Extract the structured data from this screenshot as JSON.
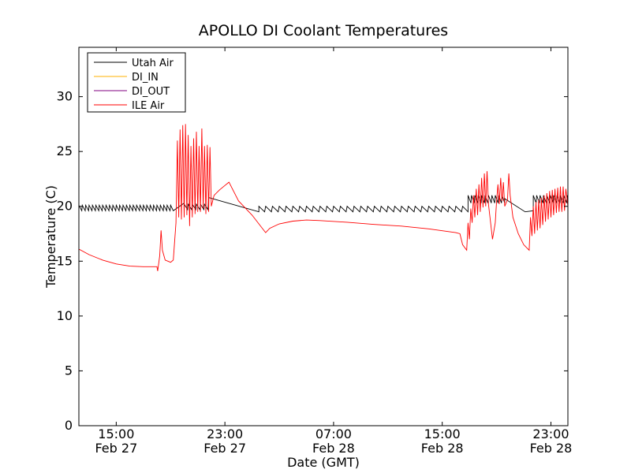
{
  "chart_data": {
    "type": "line",
    "title": "APOLLO DI Coolant Temperatures",
    "xlabel": "Date (GMT)",
    "ylabel": "Temperature (C)",
    "xlim": [
      12.25,
      48.25
    ],
    "ylim": [
      0,
      34.5
    ],
    "legend_position": "top-left",
    "x_ticks": [
      {
        "value": 15,
        "line1": "15:00",
        "line2": "Feb 27"
      },
      {
        "value": 23,
        "line1": "23:00",
        "line2": "Feb 27"
      },
      {
        "value": 31,
        "line1": "07:00",
        "line2": "Feb 28"
      },
      {
        "value": 39,
        "line1": "15:00",
        "line2": "Feb 28"
      },
      {
        "value": 47,
        "line1": "23:00",
        "line2": "Feb 28"
      }
    ],
    "y_ticks": [
      0,
      5,
      10,
      15,
      20,
      25,
      30
    ],
    "series": [
      {
        "name": "Utah Air",
        "color": "#000000",
        "visible": true
      },
      {
        "name": "DI_IN",
        "color": "#FFB000",
        "visible": false
      },
      {
        "name": "DI_OUT",
        "color": "#800080",
        "visible": false
      },
      {
        "name": "ILE Air",
        "color": "#FF0000",
        "visible": true
      }
    ],
    "utah_air": {
      "segments": [
        {
          "start": 12.25,
          "end": 19.2,
          "type": "sawtooth",
          "period": 0.25,
          "low": 19.6,
          "high": 20.1
        },
        {
          "start": 19.2,
          "end": 20.0,
          "type": "ramp",
          "from": 19.6,
          "to": 20.3
        },
        {
          "start": 20.0,
          "end": 21.8,
          "type": "sawtooth",
          "period": 0.3,
          "low": 19.7,
          "high": 20.2
        },
        {
          "start": 21.8,
          "end": 25.5,
          "type": "ramp",
          "from": 20.8,
          "to": 19.5
        },
        {
          "start": 25.5,
          "end": 40.9,
          "type": "sawtooth",
          "period": 0.5,
          "low": 19.5,
          "high": 20.0
        },
        {
          "start": 40.9,
          "end": 43.6,
          "type": "sawtooth",
          "period": 0.25,
          "low": 20.3,
          "high": 21.0
        },
        {
          "start": 43.6,
          "end": 45.1,
          "type": "ramp",
          "from": 20.7,
          "to": 19.5
        },
        {
          "start": 45.1,
          "end": 45.7,
          "type": "ramp",
          "from": 19.5,
          "to": 19.6
        },
        {
          "start": 45.7,
          "end": 48.25,
          "type": "sawtooth",
          "period": 0.25,
          "low": 20.3,
          "high": 21.0
        }
      ]
    },
    "ile_air": {
      "points": [
        [
          12.25,
          16.1
        ],
        [
          13.0,
          15.6
        ],
        [
          14.0,
          15.1
        ],
        [
          15.0,
          14.75
        ],
        [
          16.0,
          14.55
        ],
        [
          17.0,
          14.5
        ],
        [
          17.5,
          14.5
        ],
        [
          18.0,
          14.5
        ],
        [
          18.05,
          14.1
        ],
        [
          18.2,
          15.5
        ],
        [
          18.3,
          17.8
        ],
        [
          18.4,
          16.0
        ],
        [
          18.6,
          15.1
        ],
        [
          19.0,
          14.9
        ],
        [
          19.2,
          15.1
        ],
        [
          19.4,
          18.5
        ],
        [
          19.5,
          26.0
        ],
        [
          19.6,
          19.0
        ],
        [
          19.7,
          27.0
        ],
        [
          19.8,
          18.8
        ],
        [
          19.9,
          27.4
        ],
        [
          20.0,
          19.0
        ],
        [
          20.1,
          27.5
        ],
        [
          20.2,
          19.2
        ],
        [
          20.3,
          26.5
        ],
        [
          20.4,
          18.2
        ],
        [
          20.5,
          25.5
        ],
        [
          20.6,
          19.0
        ],
        [
          20.7,
          26.2
        ],
        [
          20.8,
          19.3
        ],
        [
          20.9,
          26.8
        ],
        [
          21.0,
          19.5
        ],
        [
          21.1,
          25.5
        ],
        [
          21.2,
          19.5
        ],
        [
          21.3,
          27.1
        ],
        [
          21.4,
          19.8
        ],
        [
          21.5,
          25.5
        ],
        [
          21.6,
          19.3
        ],
        [
          21.7,
          25.6
        ],
        [
          21.8,
          19.5
        ],
        [
          21.9,
          25.4
        ],
        [
          22.0,
          20.0
        ],
        [
          22.2,
          21.0
        ],
        [
          22.6,
          21.5
        ],
        [
          23.0,
          21.9
        ],
        [
          23.3,
          22.2
        ],
        [
          24.0,
          20.5
        ],
        [
          25.0,
          19.2
        ],
        [
          26.0,
          17.6
        ],
        [
          26.3,
          18.0
        ],
        [
          27.0,
          18.4
        ],
        [
          28.0,
          18.65
        ],
        [
          29.0,
          18.75
        ],
        [
          30.0,
          18.7
        ],
        [
          32.0,
          18.55
        ],
        [
          34.0,
          18.35
        ],
        [
          36.0,
          18.2
        ],
        [
          38.0,
          17.95
        ],
        [
          40.0,
          17.6
        ],
        [
          40.3,
          17.5
        ],
        [
          40.5,
          16.5
        ],
        [
          40.8,
          16.0
        ],
        [
          40.9,
          18.5
        ],
        [
          41.0,
          17.0
        ],
        [
          41.1,
          19.8
        ],
        [
          41.2,
          18.5
        ],
        [
          41.3,
          21.0
        ],
        [
          41.4,
          19.0
        ],
        [
          41.5,
          21.6
        ],
        [
          41.6,
          19.2
        ],
        [
          41.7,
          22.0
        ],
        [
          41.8,
          19.5
        ],
        [
          41.9,
          22.6
        ],
        [
          42.0,
          19.9
        ],
        [
          42.1,
          23.0
        ],
        [
          42.2,
          20.0
        ],
        [
          42.3,
          23.2
        ],
        [
          42.4,
          20.2
        ],
        [
          42.7,
          17.0
        ],
        [
          42.9,
          18.5
        ],
        [
          43.0,
          20.5
        ],
        [
          43.1,
          22.0
        ],
        [
          43.2,
          20.2
        ],
        [
          43.3,
          22.6
        ],
        [
          43.4,
          20.5
        ],
        [
          43.5,
          22.2
        ],
        [
          43.6,
          20.0
        ],
        [
          43.8,
          20.6
        ],
        [
          43.9,
          23.0
        ],
        [
          44.0,
          21.0
        ],
        [
          44.2,
          19.0
        ],
        [
          44.6,
          17.5
        ],
        [
          45.0,
          16.5
        ],
        [
          45.4,
          16.0
        ],
        [
          45.5,
          19.0
        ],
        [
          45.6,
          17.3
        ],
        [
          45.7,
          20.0
        ],
        [
          45.8,
          17.5
        ],
        [
          45.9,
          20.4
        ],
        [
          46.0,
          17.8
        ],
        [
          46.1,
          20.6
        ],
        [
          46.2,
          18.0
        ],
        [
          46.3,
          20.8
        ],
        [
          46.4,
          18.3
        ],
        [
          46.5,
          21.0
        ],
        [
          46.6,
          18.6
        ],
        [
          46.7,
          21.2
        ],
        [
          46.8,
          18.8
        ],
        [
          46.9,
          21.4
        ],
        [
          47.0,
          19.0
        ],
        [
          47.1,
          21.5
        ],
        [
          47.2,
          19.2
        ],
        [
          47.3,
          21.6
        ],
        [
          47.4,
          19.4
        ],
        [
          47.5,
          21.7
        ],
        [
          47.6,
          19.5
        ],
        [
          47.7,
          21.8
        ],
        [
          47.8,
          19.5
        ],
        [
          47.9,
          21.8
        ],
        [
          48.0,
          19.6
        ],
        [
          48.1,
          21.6
        ],
        [
          48.25,
          20.0
        ]
      ]
    }
  }
}
